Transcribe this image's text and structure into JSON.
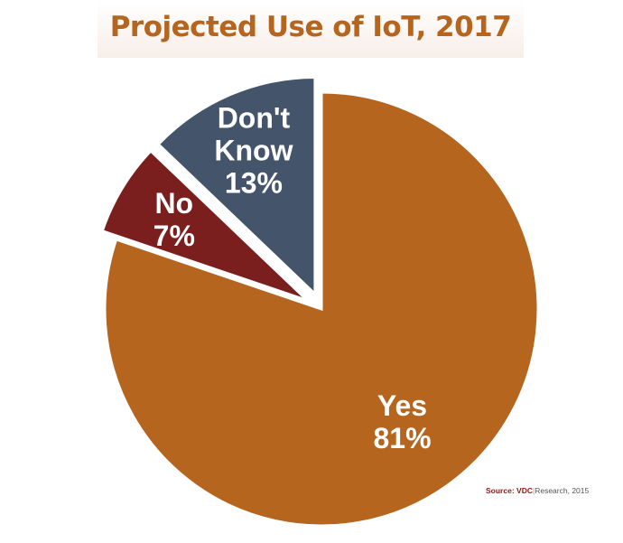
{
  "chart_data": {
    "type": "pie",
    "title": "Projected Use of IoT, 2017",
    "slices": [
      {
        "label": "Yes",
        "value": 81,
        "value_label": "81%",
        "color": "#b5651d",
        "exploded": false
      },
      {
        "label": "No",
        "value": 7,
        "value_label": "7%",
        "color": "#7a1e1e",
        "exploded": true
      },
      {
        "label": "Don't Know",
        "value": 13,
        "value_label": "13%",
        "color": "#44546a",
        "exploded": true
      }
    ],
    "legend": "none"
  },
  "source": {
    "lead": "Source:",
    "brand": "VDC",
    "sep": "|",
    "name": "Research",
    "year": ", 2015"
  }
}
